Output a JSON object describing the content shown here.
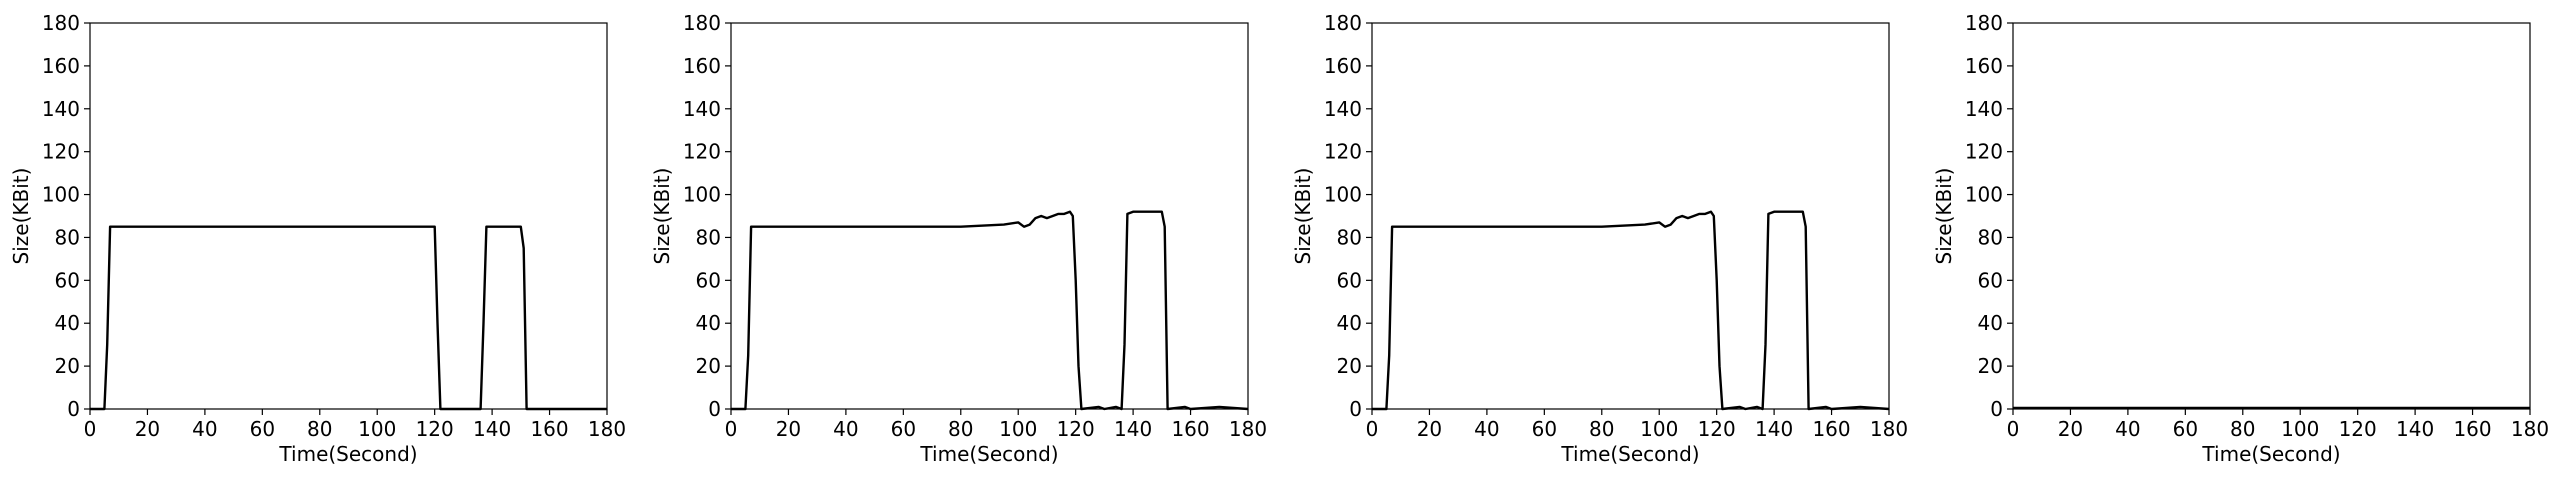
{
  "figure": {
    "background": "#ffffff",
    "line_color": "#000000"
  },
  "chart_data": [
    {
      "type": "line",
      "title": "",
      "xlabel": "Time(Second)",
      "ylabel": "Size(KBit)",
      "xlim": [
        0,
        180
      ],
      "ylim": [
        0,
        180
      ],
      "xticks": [
        "0",
        "20",
        "40",
        "60",
        "80",
        "100",
        "120",
        "140",
        "160",
        "180"
      ],
      "yticks": [
        "0",
        "20",
        "40",
        "60",
        "80",
        "100",
        "120",
        "140",
        "160",
        "180"
      ],
      "grid": false,
      "series": [
        {
          "x": [
            0,
            5,
            6,
            7,
            120,
            121,
            122,
            136,
            137,
            138,
            150,
            151,
            152,
            180
          ],
          "y": [
            0,
            0,
            30,
            85,
            85,
            40,
            0,
            0,
            40,
            85,
            85,
            75,
            0,
            0
          ]
        }
      ]
    },
    {
      "type": "line",
      "title": "",
      "xlabel": "Time(Second)",
      "ylabel": "Size(KBit)",
      "xlim": [
        0,
        180
      ],
      "ylim": [
        0,
        180
      ],
      "xticks": [
        "0",
        "20",
        "40",
        "60",
        "80",
        "100",
        "120",
        "140",
        "160",
        "180"
      ],
      "yticks": [
        "0",
        "20",
        "40",
        "60",
        "80",
        "100",
        "120",
        "140",
        "160",
        "180"
      ],
      "grid": false,
      "series": [
        {
          "x": [
            0,
            5,
            6,
            7,
            20,
            40,
            60,
            80,
            95,
            100,
            102,
            104,
            106,
            108,
            110,
            112,
            114,
            116,
            118,
            119,
            120,
            121,
            122,
            128,
            130,
            134,
            136,
            137,
            138,
            140,
            145,
            150,
            151,
            152,
            158,
            160,
            170,
            180
          ],
          "y": [
            0,
            0,
            25,
            85,
            85,
            85,
            85,
            85,
            86,
            87,
            85,
            86,
            89,
            90,
            89,
            90,
            91,
            91,
            92,
            90,
            60,
            20,
            0,
            1,
            0,
            1,
            0,
            30,
            91,
            92,
            92,
            92,
            85,
            0,
            1,
            0,
            1,
            0
          ]
        }
      ]
    },
    {
      "type": "line",
      "title": "",
      "xlabel": "Time(Second)",
      "ylabel": "Size(KBit)",
      "xlim": [
        0,
        180
      ],
      "ylim": [
        0,
        180
      ],
      "xticks": [
        "0",
        "20",
        "40",
        "60",
        "80",
        "100",
        "120",
        "140",
        "160",
        "180"
      ],
      "yticks": [
        "0",
        "20",
        "40",
        "60",
        "80",
        "100",
        "120",
        "140",
        "160",
        "180"
      ],
      "grid": false,
      "series": [
        {
          "x": [
            0,
            5,
            6,
            7,
            20,
            40,
            60,
            80,
            95,
            100,
            102,
            104,
            106,
            108,
            110,
            112,
            114,
            116,
            118,
            119,
            120,
            121,
            122,
            128,
            130,
            134,
            136,
            137,
            138,
            140,
            145,
            150,
            151,
            152,
            158,
            160,
            170,
            180
          ],
          "y": [
            0,
            0,
            25,
            85,
            85,
            85,
            85,
            85,
            86,
            87,
            85,
            86,
            89,
            90,
            89,
            90,
            91,
            91,
            92,
            90,
            60,
            20,
            0,
            1,
            0,
            1,
            0,
            30,
            91,
            92,
            92,
            92,
            85,
            0,
            1,
            0,
            1,
            0
          ]
        }
      ]
    },
    {
      "type": "line",
      "title": "",
      "xlabel": "Time(Second)",
      "ylabel": "Size(KBit)",
      "xlim": [
        0,
        180
      ],
      "ylim": [
        0,
        180
      ],
      "xticks": [
        "0",
        "20",
        "40",
        "60",
        "80",
        "100",
        "120",
        "140",
        "160",
        "180"
      ],
      "yticks": [
        "0",
        "20",
        "40",
        "60",
        "80",
        "100",
        "120",
        "140",
        "160",
        "180"
      ],
      "grid": false,
      "series": [
        {
          "x": [
            0,
            180
          ],
          "y": [
            0.5,
            0.5
          ]
        }
      ]
    }
  ]
}
